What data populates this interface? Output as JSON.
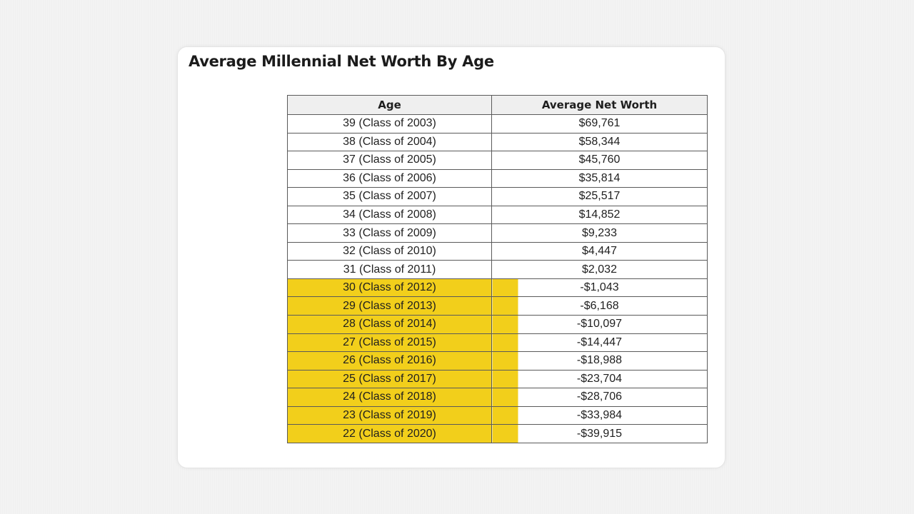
{
  "chart_data": {
    "type": "table",
    "title": "Average Millennial Net Worth By Age",
    "columns": [
      "Age",
      "Average Net Worth"
    ],
    "rows": [
      {
        "age": "39 (Class of 2003)",
        "net_worth": "$69,761",
        "highlighted": false
      },
      {
        "age": "38 (Class of 2004)",
        "net_worth": "$58,344",
        "highlighted": false
      },
      {
        "age": "37 (Class of 2005)",
        "net_worth": "$45,760",
        "highlighted": false
      },
      {
        "age": "36 (Class of 2006)",
        "net_worth": "$35,814",
        "highlighted": false
      },
      {
        "age": "35 (Class of 2007)",
        "net_worth": "$25,517",
        "highlighted": false
      },
      {
        "age": "34 (Class of 2008)",
        "net_worth": "$14,852",
        "highlighted": false
      },
      {
        "age": "33 (Class of 2009)",
        "net_worth": "$9,233",
        "highlighted": false
      },
      {
        "age": "32 (Class of 2010)",
        "net_worth": "$4,447",
        "highlighted": false
      },
      {
        "age": "31 (Class of 2011)",
        "net_worth": "$2,032",
        "highlighted": false
      },
      {
        "age": "30 (Class of 2012)",
        "net_worth": "-$1,043",
        "highlighted": true
      },
      {
        "age": "29 (Class of 2013)",
        "net_worth": "-$6,168",
        "highlighted": true
      },
      {
        "age": "28 (Class of 2014)",
        "net_worth": "-$10,097",
        "highlighted": true
      },
      {
        "age": "27 (Class of 2015)",
        "net_worth": "-$14,447",
        "highlighted": true
      },
      {
        "age": "26 (Class of 2016)",
        "net_worth": "-$18,988",
        "highlighted": true
      },
      {
        "age": "25 (Class of 2017)",
        "net_worth": "-$23,704",
        "highlighted": true
      },
      {
        "age": "24 (Class of 2018)",
        "net_worth": "-$28,706",
        "highlighted": true
      },
      {
        "age": "23 (Class of 2019)",
        "net_worth": "-$33,984",
        "highlighted": true
      },
      {
        "age": "22 (Class of 2020)",
        "net_worth": "-$39,915",
        "highlighted": true
      }
    ]
  },
  "colors": {
    "highlight": "#f2cf1b",
    "header_bg": "#efefef",
    "border": "#5a5a5a"
  }
}
